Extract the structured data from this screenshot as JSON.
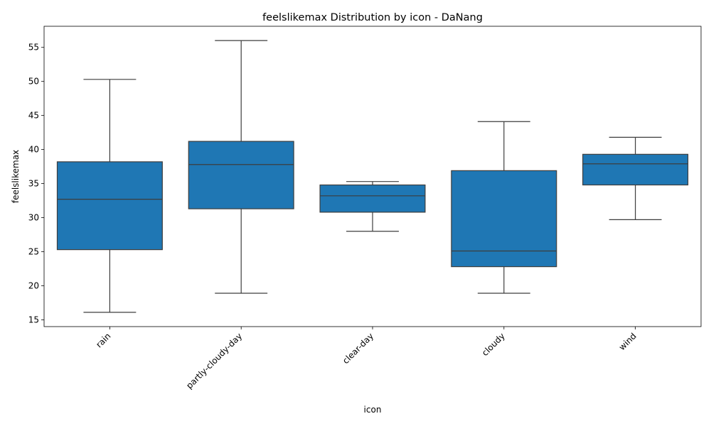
{
  "chart_data": {
    "type": "box",
    "title": "feelslikemax Distribution by icon - DaNang",
    "xlabel": "icon",
    "ylabel": "feelslikemax",
    "ylim": [
      14.0,
      58.1
    ],
    "yticks": [
      15,
      20,
      25,
      30,
      35,
      40,
      45,
      50,
      55
    ],
    "grid": false,
    "color": "#1f77b4",
    "categories": [
      "rain",
      "partly-cloudy-day",
      "clear-day",
      "cloudy",
      "wind"
    ],
    "boxes": [
      {
        "category": "rain",
        "whisker_low": 16.1,
        "q1": 25.3,
        "median": 32.7,
        "q3": 38.2,
        "whisker_high": 50.3
      },
      {
        "category": "partly-cloudy-day",
        "whisker_low": 18.9,
        "q1": 31.3,
        "median": 37.8,
        "q3": 41.2,
        "whisker_high": 56.0
      },
      {
        "category": "clear-day",
        "whisker_low": 28.0,
        "q1": 30.8,
        "median": 33.2,
        "q3": 34.8,
        "whisker_high": 35.3
      },
      {
        "category": "cloudy",
        "whisker_low": 18.9,
        "q1": 22.8,
        "median": 25.1,
        "q3": 36.9,
        "whisker_high": 44.1
      },
      {
        "category": "wind",
        "whisker_low": 29.7,
        "q1": 34.8,
        "median": 37.9,
        "q3": 39.3,
        "whisker_high": 41.8
      }
    ]
  }
}
